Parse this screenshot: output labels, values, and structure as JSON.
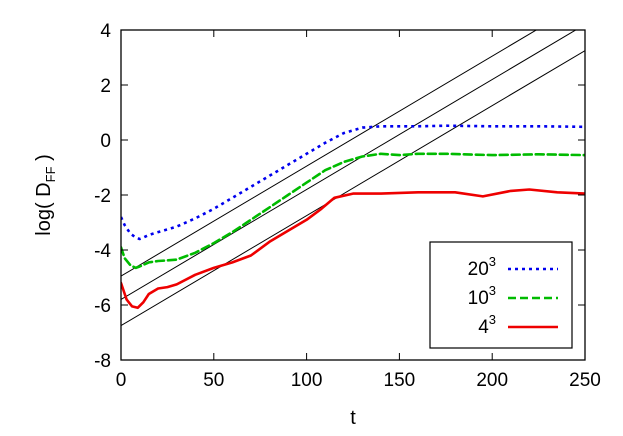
{
  "chart_data": {
    "type": "line",
    "title": "",
    "xlabel": "t",
    "ylabel_main": "log( D",
    "ylabel_sub": "FF",
    "ylabel_end": " )",
    "xlim": [
      0,
      250
    ],
    "ylim": [
      -8,
      4
    ],
    "xticks": [
      0,
      50,
      100,
      150,
      200,
      250
    ],
    "yticks": [
      -8,
      -6,
      -4,
      -2,
      0,
      2,
      4
    ],
    "grid": false,
    "legend_position": "bottom-right",
    "series": [
      {
        "name_base": "20",
        "name_exp": "3",
        "color": "#0000ee",
        "dash": "dotted",
        "x": [
          0,
          2,
          5,
          8,
          10,
          12,
          15,
          20,
          25,
          30,
          40,
          50,
          60,
          70,
          80,
          90,
          100,
          110,
          120,
          130,
          140,
          150,
          160,
          175,
          200,
          225,
          250
        ],
        "y": [
          -2.8,
          -3.1,
          -3.4,
          -3.55,
          -3.6,
          -3.55,
          -3.45,
          -3.35,
          -3.25,
          -3.15,
          -2.85,
          -2.5,
          -2.1,
          -1.7,
          -1.3,
          -0.9,
          -0.5,
          -0.1,
          0.25,
          0.45,
          0.5,
          0.5,
          0.5,
          0.52,
          0.5,
          0.5,
          0.48
        ]
      },
      {
        "name_base": "10",
        "name_exp": "3",
        "color": "#00bb00",
        "dash": "dashed",
        "x": [
          0,
          2,
          5,
          8,
          10,
          15,
          20,
          25,
          30,
          40,
          50,
          60,
          70,
          80,
          90,
          100,
          110,
          120,
          130,
          140,
          150,
          160,
          175,
          200,
          225,
          250
        ],
        "y": [
          -3.9,
          -4.3,
          -4.55,
          -4.65,
          -4.6,
          -4.45,
          -4.4,
          -4.38,
          -4.35,
          -4.1,
          -3.75,
          -3.35,
          -2.9,
          -2.45,
          -2.0,
          -1.55,
          -1.1,
          -0.8,
          -0.6,
          -0.5,
          -0.55,
          -0.5,
          -0.5,
          -0.55,
          -0.52,
          -0.55
        ]
      },
      {
        "name_base": "4",
        "name_exp": "3",
        "color": "#ee0000",
        "dash": "solid",
        "x": [
          0,
          3,
          6,
          9,
          12,
          15,
          20,
          25,
          30,
          40,
          50,
          60,
          70,
          80,
          90,
          100,
          108,
          115,
          125,
          140,
          160,
          180,
          195,
          210,
          220,
          235,
          250
        ],
        "y": [
          -5.2,
          -5.8,
          -6.05,
          -6.1,
          -5.9,
          -5.6,
          -5.4,
          -5.35,
          -5.25,
          -4.9,
          -4.65,
          -4.45,
          -4.2,
          -3.7,
          -3.3,
          -2.9,
          -2.5,
          -2.1,
          -1.95,
          -1.95,
          -1.9,
          -1.9,
          -2.05,
          -1.85,
          -1.8,
          -1.9,
          -1.95
        ]
      }
    ],
    "reference_lines": [
      {
        "slope": 0.04,
        "intercept": -4.95
      },
      {
        "slope": 0.04,
        "intercept": -5.8
      },
      {
        "slope": 0.04,
        "intercept": -6.75
      }
    ]
  }
}
